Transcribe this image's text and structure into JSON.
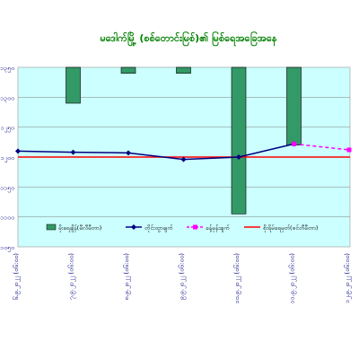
{
  "chart_data": {
    "type": "bar+line",
    "title": "မဒေါက်မြို့ (စစ်တောင်းမြစ်)၏ မြစ်ရေအခြေအနေ",
    "categories": [
      "၆.၉.၂၀၂၂ (၀၆:၀၀)",
      "၇.၉.၂၀၂၂ (၀၆:၀၀)",
      "၈.၉.၂၀၂၂ (၀၆:၀၀)",
      "၉.၉.၂၀၂၂ (၀၆:၀၀)",
      "၁၀.၉.၂၀၂၂ (၀၆:၀၀)",
      "၁၁.၉.၂၀၂၂ (၀၆:၀၀)",
      "၁၂.၉.၂၀၂၂ (၀၆:၀၀)"
    ],
    "left_axis": {
      "ticks": [
        "၁၃၅၀",
        "၁၃၀၀",
        "၁၂၅၀",
        "၁၂၀၀",
        "၁၁၅၀",
        "၁၁၀၀",
        "၁၀၅၀"
      ]
    },
    "right_axis": {
      "ticks": [
        "",
        "",
        "",
        "",
        "",
        "",
        ""
      ]
    },
    "series": [
      {
        "name": "မိုးရေချိန်(မီလီမီတာ)",
        "type": "bar",
        "axis": "right",
        "color": "#339966",
        "values": [
          0,
          12,
          2,
          2,
          49,
          26,
          0
        ]
      },
      {
        "name": "တိုင်းထွာချက်",
        "type": "line",
        "axis": "left",
        "color": "#000080",
        "values": [
          1210,
          1208,
          1207,
          1196,
          1200,
          1222,
          null
        ]
      },
      {
        "name": "ခန့်မှန်းချက်",
        "type": "line",
        "axis": "left",
        "color": "#ff00ff",
        "dashed": true,
        "values": [
          null,
          null,
          null,
          null,
          null,
          1222,
          1212
        ]
      },
      {
        "name": "စိုးရိမ်ရေမှတ်(စင်တီမီတာ)",
        "type": "hline",
        "axis": "left",
        "color": "#ff0000",
        "value": 1200
      }
    ],
    "ylim_left": [
      1050,
      1350
    ],
    "ylim_right": [
      60,
      0
    ],
    "grid": true,
    "legend": "bottom-inside"
  }
}
